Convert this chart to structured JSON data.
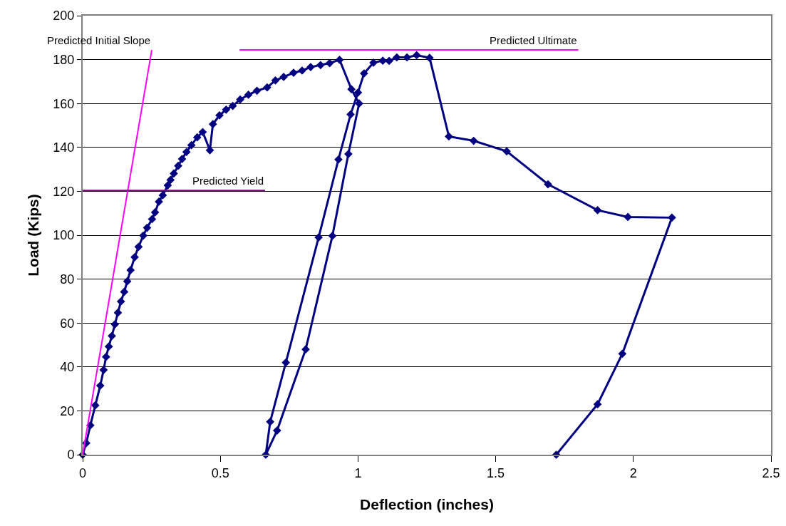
{
  "chart_data": {
    "type": "line",
    "xlabel": "Deflection (inches)",
    "ylabel": "Load (Kips)",
    "xlim": [
      0,
      2.5
    ],
    "xticks": [
      0,
      0.5,
      1,
      1.5,
      2,
      2.5
    ],
    "ylim": [
      0,
      200
    ],
    "yticks": [
      0,
      20,
      40,
      60,
      80,
      100,
      120,
      140,
      160,
      180,
      200
    ],
    "grid": "y",
    "marker": "diamond",
    "line_style": "solid",
    "series": [
      {
        "color": "#000080",
        "x": [
          0,
          0.013,
          0.028,
          0.046,
          0.064,
          0.076,
          0.085,
          0.095,
          0.106,
          0.117,
          0.128,
          0.139,
          0.151,
          0.162,
          0.174,
          0.189,
          0.203,
          0.22,
          0.234,
          0.252,
          0.263,
          0.277,
          0.291,
          0.309,
          0.319,
          0.331,
          0.347,
          0.361,
          0.377,
          0.395,
          0.416,
          0.436,
          0.462,
          0.473,
          0.497,
          0.521,
          0.545,
          0.572,
          0.602,
          0.633,
          0.67,
          0.7,
          0.73,
          0.766,
          0.797,
          0.828,
          0.864,
          0.897,
          0.933,
          0.976,
          1.004,
          0.965,
          0.907,
          0.81,
          0.706,
          0.665,
          0.681,
          0.738,
          0.857,
          0.929,
          0.973,
          1.0,
          1.022,
          1.056,
          1.09,
          1.113,
          1.141,
          1.178,
          1.213,
          1.26,
          1.33,
          1.42,
          1.54,
          1.69,
          1.87,
          1.98,
          2.14,
          1.96,
          1.87,
          1.72
        ],
        "values": [
          0,
          5.3,
          13.4,
          22.5,
          31.5,
          38.6,
          44.6,
          49.3,
          54.1,
          59.4,
          64.7,
          69.8,
          74.2,
          79,
          84.1,
          90,
          94.7,
          99.8,
          103.4,
          107.3,
          110.4,
          115.3,
          118.2,
          122.7,
          125.2,
          128.1,
          131.6,
          134.7,
          137.9,
          141,
          144.6,
          147,
          138.7,
          150.6,
          154.6,
          157.2,
          158.9,
          161.8,
          164,
          165.8,
          167.3,
          170.5,
          172.1,
          174,
          175,
          176.6,
          177.5,
          178.4,
          179.9,
          166.5,
          160,
          137,
          99.7,
          48,
          11,
          0,
          15,
          42,
          99,
          134.5,
          155,
          165,
          173.7,
          178.6,
          179.5,
          179.4,
          181,
          181,
          182,
          180.8,
          145,
          143,
          138.2,
          123.2,
          111.4,
          108.3,
          108,
          46,
          23,
          0
        ]
      },
      {
        "name": "Predicted Initial Slope",
        "color": "#ff00ff",
        "marker": "none",
        "x": [
          0,
          0.251
        ],
        "values": [
          0,
          184.4
        ]
      },
      {
        "name": "Predicted Ultimate",
        "color": "#ff00ff",
        "marker": "none",
        "x": [
          0.57,
          1.8
        ],
        "values": [
          184.4,
          184.4
        ]
      },
      {
        "name": "Predicted Yield",
        "color": "#800080",
        "marker": "none",
        "x": [
          0,
          0.6625
        ],
        "values": [
          120.4,
          120.4
        ]
      }
    ]
  }
}
